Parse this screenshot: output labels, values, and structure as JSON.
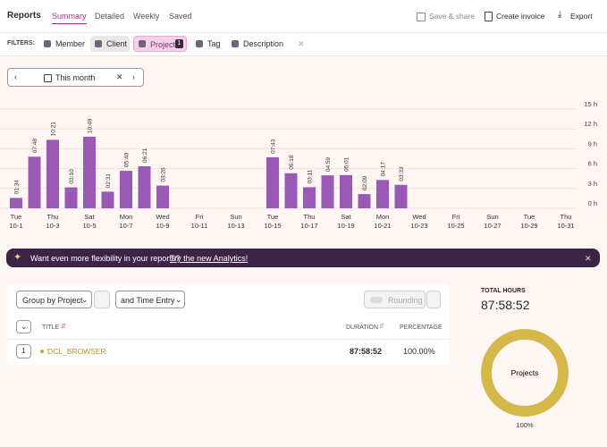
{
  "nav": {
    "title": "Reports",
    "tabs": [
      "Summary",
      "Detailed",
      "Weekly",
      "Saved"
    ],
    "actions": [
      "Save & share",
      "Create invoice",
      "Export"
    ]
  },
  "filters": {
    "label": "FILTERS:",
    "items": [
      "Member",
      "Client",
      "Project",
      "Tag",
      "Description"
    ],
    "project_count": 1
  },
  "date_range": "This month",
  "chart": {
    "type": "bar",
    "color": "#9b59b6",
    "categories": [
      "10-1",
      null,
      "10-3",
      null,
      "10-5",
      null,
      "10-7",
      null,
      "10-9",
      null,
      "10-11",
      null,
      "10-13",
      null,
      "10-15",
      null,
      "10-17",
      null,
      "10-19",
      null,
      "10-21",
      null,
      "10-23",
      null,
      "10-25",
      null,
      "10-27",
      null,
      "10-29",
      null,
      "10-31"
    ],
    "weekdays": [
      "Tue",
      null,
      "Thu",
      null,
      "Sat",
      null,
      "Mon",
      null,
      "Wed",
      null,
      "Fri",
      null,
      "Sun",
      null,
      "Tue",
      null,
      "Thu",
      null,
      "Sat",
      null,
      "Mon",
      null,
      "Wed",
      null,
      "Fri",
      null,
      "Sun",
      null,
      "Tue",
      null,
      "Thu"
    ],
    "values": [
      1.567,
      7.8,
      10.35,
      3.167,
      10.817,
      2.517,
      5.667,
      6.35,
      3.433,
      null,
      null,
      null,
      null,
      null,
      7.717,
      5.3,
      3.183,
      4.983,
      5.017,
      2.15,
      4.283,
      3.55,
      null,
      null,
      null,
      null,
      null,
      null,
      null,
      null,
      null
    ],
    "value_labels": [
      "01:34",
      "07:48",
      "10:21",
      "03:10",
      "10:49",
      "02:31",
      "05:40",
      "06:21",
      "03:26",
      null,
      null,
      null,
      null,
      null,
      "07:43",
      "05:18",
      "03:11",
      "04:59",
      "05:01",
      "02:09",
      "04:17",
      "03:33",
      null,
      null,
      null,
      null,
      null,
      null,
      null,
      null,
      null
    ],
    "ylim": [
      0,
      15
    ],
    "yticks": [
      {
        "value": 0,
        "label": "0 h"
      },
      {
        "value": 3,
        "label": "3 h"
      },
      {
        "value": 6,
        "label": "6 h"
      },
      {
        "value": 9,
        "label": "9 h"
      },
      {
        "value": 12,
        "label": "12 h"
      },
      {
        "value": 15,
        "label": "15 h"
      }
    ],
    "grid": true
  },
  "banner": {
    "text": "Want even more flexibility in your reports?",
    "link": "Try the new Analytics!"
  },
  "table": {
    "group_by": "Group by Project",
    "then_by": "and Time Entry",
    "rounding": "Rounding",
    "columns": [
      "TITLE",
      "DURATION",
      "PERCENTAGE"
    ],
    "rows": [
      {
        "index": 1,
        "title": "DCL_BROWSER",
        "duration": "87:58:52",
        "percentage": "100.00%"
      }
    ]
  },
  "summary": {
    "label": "TOTAL HOURS",
    "total": "87:58:52",
    "donut_label": "Projects",
    "donut": {
      "values": [
        100
      ],
      "value_labels": [
        "100%"
      ],
      "color": "#d4b84a"
    }
  }
}
